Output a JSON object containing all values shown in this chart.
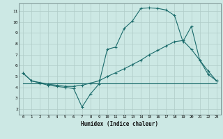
{
  "xlabel": "Humidex (Indice chaleur)",
  "background_color": "#cce8e4",
  "grid_color": "#b0ccc8",
  "line_color": "#1a6b6b",
  "xlim": [
    -0.5,
    23.5
  ],
  "ylim": [
    1.5,
    11.7
  ],
  "xticks": [
    0,
    1,
    2,
    3,
    4,
    5,
    6,
    7,
    8,
    9,
    10,
    11,
    12,
    13,
    14,
    15,
    16,
    17,
    18,
    19,
    20,
    21,
    22,
    23
  ],
  "yticks": [
    2,
    3,
    4,
    5,
    6,
    7,
    8,
    9,
    10,
    11
  ],
  "series1_x": [
    0,
    1,
    2,
    3,
    4,
    5,
    6,
    7,
    8,
    9,
    10,
    11,
    12,
    13,
    14,
    15,
    16,
    17,
    18,
    19,
    20,
    21,
    22,
    23
  ],
  "series1_y": [
    5.3,
    4.6,
    4.4,
    4.2,
    4.1,
    4.0,
    3.9,
    2.2,
    3.4,
    4.3,
    7.5,
    7.7,
    9.4,
    10.1,
    11.25,
    11.3,
    11.25,
    11.1,
    10.6,
    8.2,
    9.6,
    6.5,
    5.2,
    4.6
  ],
  "series2_x": [
    0,
    1,
    2,
    3,
    4,
    5,
    6,
    7,
    8,
    9,
    10,
    11,
    12,
    13,
    14,
    15,
    16,
    17,
    18,
    19,
    20,
    21,
    22,
    23
  ],
  "series2_y": [
    5.3,
    4.6,
    4.45,
    4.3,
    4.2,
    4.1,
    4.1,
    4.2,
    4.4,
    4.6,
    5.0,
    5.35,
    5.7,
    6.1,
    6.5,
    7.0,
    7.4,
    7.8,
    8.2,
    8.3,
    7.5,
    6.5,
    5.5,
    4.6
  ],
  "series3_x": [
    0,
    23
  ],
  "series3_y": [
    4.4,
    4.4
  ]
}
